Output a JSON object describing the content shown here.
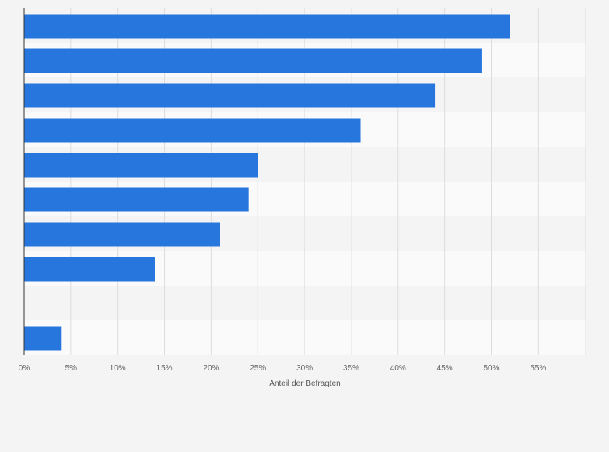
{
  "chart_data": {
    "type": "bar",
    "orientation": "horizontal",
    "categories": [
      "",
      "",
      "",
      "",
      "",
      "",
      "",
      "",
      "",
      ""
    ],
    "values": [
      52,
      49,
      44,
      36,
      25,
      24,
      21,
      14,
      0,
      4
    ],
    "value_unit": "%",
    "xlabel": "Anteil der Befragten",
    "ylabel": "",
    "xlim": [
      0,
      60
    ],
    "xticks": [
      "0%",
      "5%",
      "10%",
      "15%",
      "20%",
      "25%",
      "30%",
      "35%",
      "40%",
      "45%",
      "50%",
      "55%"
    ],
    "grid": true,
    "bar_color": "#2776de",
    "band_colors": [
      "#f4f4f4",
      "#fafafa"
    ],
    "gridline_color": "#dddddd",
    "axis_color": "#333333"
  }
}
